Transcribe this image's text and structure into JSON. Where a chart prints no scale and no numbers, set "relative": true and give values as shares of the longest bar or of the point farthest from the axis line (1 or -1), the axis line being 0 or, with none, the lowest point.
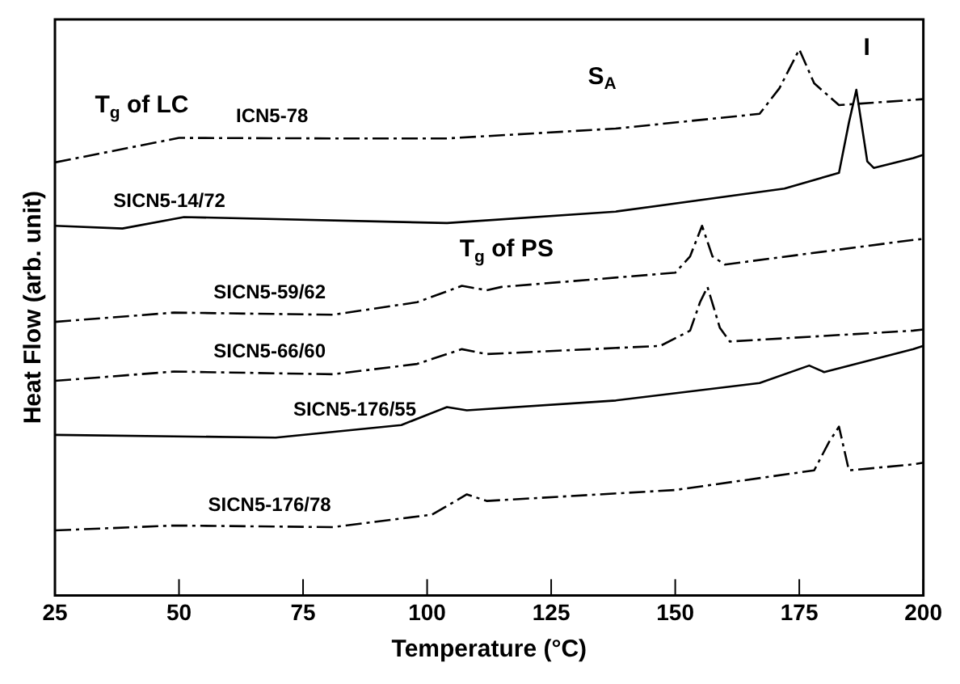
{
  "chart_data": {
    "type": "line",
    "relative": true,
    "xlabel": "Temperature (°C)",
    "ylabel": "Heat Flow (arb. unit)",
    "xlim": [
      25,
      200
    ],
    "xticks": [
      25,
      50,
      75,
      100,
      125,
      150,
      175,
      200
    ],
    "grid": false,
    "legend": false,
    "marker": "none",
    "series": [
      {
        "name": "ICN5-78",
        "color": "#000000",
        "line_style": "dashed",
        "x": [
          25,
          50,
          81,
          104,
          138,
          167,
          171,
          175,
          178,
          183,
          197,
          200
        ],
        "values": [
          0.793,
          0.838,
          0.837,
          0.837,
          0.855,
          0.882,
          0.929,
          1.0,
          0.938,
          0.898,
          0.907,
          0.909
        ]
      },
      {
        "name": "SICN5-14/72",
        "color": "#000000",
        "line_style": "solid",
        "x": [
          25,
          38.6,
          51,
          104,
          138,
          172,
          183,
          185,
          186.5,
          188.7,
          190,
          198,
          200
        ],
        "values": [
          0.677,
          0.672,
          0.693,
          0.682,
          0.703,
          0.745,
          0.774,
          0.866,
          0.926,
          0.795,
          0.783,
          0.801,
          0.807
        ]
      },
      {
        "name": "SICN5-59/62",
        "color": "#000000",
        "line_style": "dashed",
        "x": [
          25,
          49,
          81,
          98,
          107,
          112,
          115,
          150,
          153,
          155.4,
          157.5,
          160,
          197,
          200
        ],
        "values": [
          0.501,
          0.518,
          0.514,
          0.537,
          0.567,
          0.559,
          0.565,
          0.591,
          0.621,
          0.677,
          0.621,
          0.606,
          0.65,
          0.653
        ]
      },
      {
        "name": "SICN5-66/60",
        "color": "#000000",
        "line_style": "dashed",
        "x": [
          25,
          49,
          81,
          98,
          107,
          112,
          147,
          153,
          155,
          156.5,
          159,
          161,
          198,
          200
        ],
        "values": [
          0.393,
          0.41,
          0.405,
          0.424,
          0.451,
          0.442,
          0.457,
          0.485,
          0.537,
          0.565,
          0.49,
          0.465,
          0.485,
          0.487
        ]
      },
      {
        "name": "SICN5-176/55",
        "color": "#000000",
        "line_style": "solid",
        "x": [
          25,
          69.5,
          94.8,
          104,
          108,
          138,
          167,
          177,
          180,
          198,
          200
        ],
        "values": [
          0.294,
          0.289,
          0.312,
          0.345,
          0.339,
          0.357,
          0.389,
          0.421,
          0.409,
          0.451,
          0.457
        ]
      },
      {
        "name": "SICN5-176/78",
        "color": "#000000",
        "line_style": "dashed",
        "x": [
          25,
          49,
          81,
          101,
          108,
          112,
          150,
          178,
          181,
          183,
          185,
          198,
          200
        ],
        "values": [
          0.119,
          0.128,
          0.125,
          0.148,
          0.185,
          0.173,
          0.193,
          0.229,
          0.281,
          0.309,
          0.229,
          0.24,
          0.243
        ]
      }
    ],
    "annotations": [
      "T$_{g}$ of LC",
      "S$_{A}$",
      "I",
      "T$_{g}$ of PS"
    ]
  }
}
